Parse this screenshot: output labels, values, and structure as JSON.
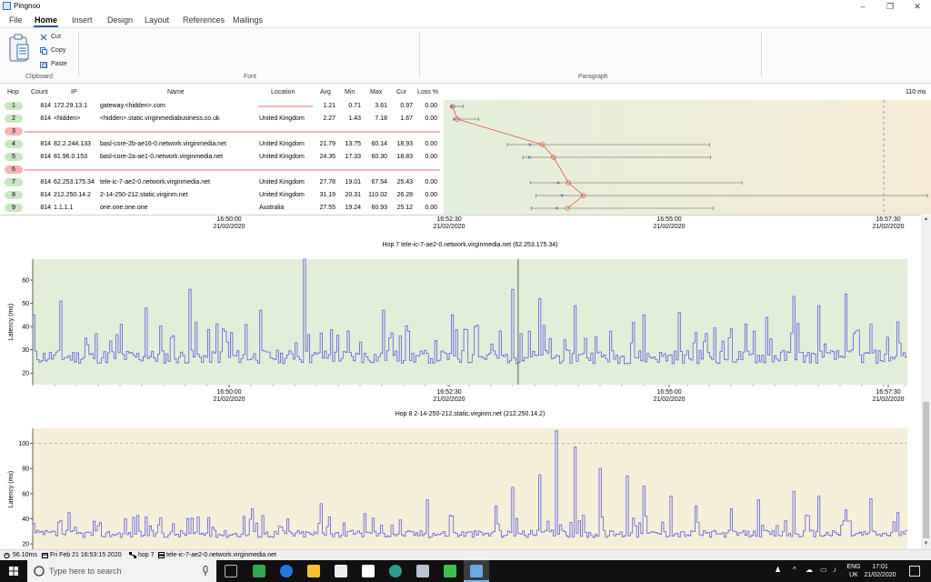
{
  "window": {
    "title": "Pingnoo",
    "controls": [
      "–",
      "❐",
      "✕"
    ]
  },
  "menu": {
    "tabs": [
      "File",
      "Home",
      "Insert",
      "Design",
      "Layout",
      "References",
      "Mailings"
    ],
    "active": "Home"
  },
  "ribbon": {
    "clipboard": {
      "label": "Clipboard",
      "cut": "Cut",
      "copy": "Copy",
      "paste": "Paste"
    },
    "font": {
      "label": "Font"
    },
    "paragraph": {
      "label": "Paragraph"
    }
  },
  "table": {
    "headers": [
      "Hop",
      "Count",
      "IP",
      "Name",
      "Location",
      "Avg",
      "Min",
      "Max",
      "Cur",
      "Loss %"
    ],
    "rows": [
      {
        "hop": "1",
        "count": "814",
        "ip": "172.29.13.1",
        "name": "gateway.<hidden>.com",
        "location": "",
        "avg": "1.21",
        "min": "0.71",
        "max": "3.61",
        "cur": "0.97",
        "loss": "0.00",
        "status": "ok"
      },
      {
        "hop": "2",
        "count": "814",
        "ip": "<hidden>",
        "name": "<hidden>.static.virginmediabusiness.co.uk",
        "location": "United Kingdom",
        "avg": "2.27",
        "min": "1.43",
        "max": "7.18",
        "cur": "1.67",
        "loss": "0.00",
        "status": "ok"
      },
      {
        "hop": "3",
        "status": "timeout"
      },
      {
        "hop": "4",
        "count": "814",
        "ip": "82.2.244.133",
        "name": "basl-core-2b-ae16-0.network.virginmedia.net",
        "location": "United Kingdom",
        "avg": "21.79",
        "min": "13.75",
        "max": "60.14",
        "cur": "18.93",
        "loss": "0.00",
        "status": "ok"
      },
      {
        "hop": "5",
        "count": "814",
        "ip": "81.96.0.153",
        "name": "basl-core-2a-ae1-0.network.virginmedia.net",
        "location": "United Kingdom",
        "avg": "24.35",
        "min": "17.33",
        "max": "60.30",
        "cur": "18.83",
        "loss": "0.00",
        "status": "ok"
      },
      {
        "hop": "6",
        "status": "timeout"
      },
      {
        "hop": "7",
        "count": "814",
        "ip": "62.253.175.34",
        "name": "tele-ic-7-ae2-0.network.virginmedia.net",
        "location": "United Kingdom",
        "avg": "27.78",
        "min": "19.01",
        "max": "67.54",
        "cur": "25.43",
        "loss": "0.00",
        "status": "ok"
      },
      {
        "hop": "8",
        "count": "814",
        "ip": "212.250.14.2",
        "name": "2-14-250-212.static.virginm.net",
        "location": "United Kingdom",
        "avg": "31.19",
        "min": "20.31",
        "max": "110.02",
        "cur": "26.28",
        "loss": "0.00",
        "status": "ok"
      },
      {
        "hop": "9",
        "count": "814",
        "ip": "1.1.1.1",
        "name": "one.one.one.one",
        "location": "Australia",
        "avg": "27.55",
        "min": "19.24",
        "max": "60.93",
        "cur": "25.12",
        "loss": "0.00",
        "status": "ok"
      }
    ]
  },
  "strip_chart": {
    "scale_label": "110 ms",
    "max_ms": 110
  },
  "time_axis": {
    "ticks": [
      {
        "time": "16:50:00",
        "date": "21/02/2020"
      },
      {
        "time": "16:52:30",
        "date": "21/02/2020"
      },
      {
        "time": "16:55:00",
        "date": "21/02/2020"
      },
      {
        "time": "16:57:30",
        "date": "21/02/2020"
      }
    ]
  },
  "chart_data": [
    {
      "type": "line",
      "title": "Hop 7 tele-ic-7-ae2-0.network.virginmedia.net (62.253.175.34)",
      "ylabel": "Latency (ms)",
      "y_ticks": [
        "20",
        "30",
        "40",
        "50",
        "60"
      ],
      "ylim": [
        15,
        69
      ],
      "x_range": [
        "16:47:41",
        "16:58:17"
      ],
      "baseline_ms": 27,
      "spikes": [
        [
          0.0,
          45
        ],
        [
          0.03,
          51
        ],
        [
          0.06,
          35
        ],
        [
          0.1,
          41
        ],
        [
          0.13,
          48
        ],
        [
          0.16,
          36
        ],
        [
          0.18,
          56
        ],
        [
          0.22,
          38
        ],
        [
          0.26,
          47
        ],
        [
          0.3,
          33
        ],
        [
          0.31,
          69
        ],
        [
          0.36,
          38
        ],
        [
          0.4,
          47
        ],
        [
          0.43,
          38
        ],
        [
          0.46,
          34
        ],
        [
          0.48,
          45
        ],
        [
          0.55,
          56
        ],
        [
          0.58,
          52
        ],
        [
          0.62,
          49
        ],
        [
          0.66,
          38
        ],
        [
          0.7,
          45
        ],
        [
          0.74,
          46
        ],
        [
          0.77,
          37
        ],
        [
          0.8,
          39
        ],
        [
          0.84,
          44
        ],
        [
          0.87,
          53
        ],
        [
          0.9,
          49
        ],
        [
          0.93,
          54
        ],
        [
          0.96,
          41
        ],
        [
          0.99,
          42
        ]
      ],
      "cursor_x": 0.555,
      "background": "#e3eed9",
      "line_color": "#5a5ae0"
    },
    {
      "type": "line",
      "title": "Hop 8 2-14-250-212.static.virginm.net (212.250.14.2)",
      "ylabel": "Latency (ms)",
      "y_ticks": [
        "20",
        "40",
        "60",
        "80",
        "100"
      ],
      "ylim": [
        15,
        112
      ],
      "x_range": [
        "16:47:41",
        "16:58:17"
      ],
      "baseline_ms": 28,
      "threshold_ms": 100,
      "spikes": [
        [
          0.04,
          45
        ],
        [
          0.07,
          38
        ],
        [
          0.12,
          42
        ],
        [
          0.16,
          36
        ],
        [
          0.2,
          41
        ],
        [
          0.25,
          48
        ],
        [
          0.29,
          40
        ],
        [
          0.33,
          52
        ],
        [
          0.38,
          44
        ],
        [
          0.42,
          39
        ],
        [
          0.45,
          55
        ],
        [
          0.48,
          42
        ],
        [
          0.53,
          50
        ],
        [
          0.55,
          65
        ],
        [
          0.58,
          75
        ],
        [
          0.6,
          110
        ],
        [
          0.62,
          97
        ],
        [
          0.65,
          80
        ],
        [
          0.68,
          74
        ],
        [
          0.7,
          66
        ],
        [
          0.73,
          58
        ],
        [
          0.76,
          50
        ],
        [
          0.8,
          48
        ],
        [
          0.83,
          55
        ],
        [
          0.87,
          62
        ],
        [
          0.9,
          58
        ],
        [
          0.93,
          47
        ],
        [
          0.96,
          56
        ],
        [
          0.99,
          45
        ]
      ],
      "background": "#f6efd9",
      "line_color": "#5a5ae0"
    }
  ],
  "status": {
    "latency": "56.10ms",
    "datetime": "Fri Feb 21 16:53:15 2020",
    "hop": "hop 7",
    "host": "tele-ic-7-ae2-0.network.virginmedia.net"
  },
  "taskbar": {
    "search_placeholder": "Type here to search",
    "lang_top": "ENG",
    "lang_bottom": "UK",
    "time": "17:01",
    "date": "21/02/2020"
  }
}
